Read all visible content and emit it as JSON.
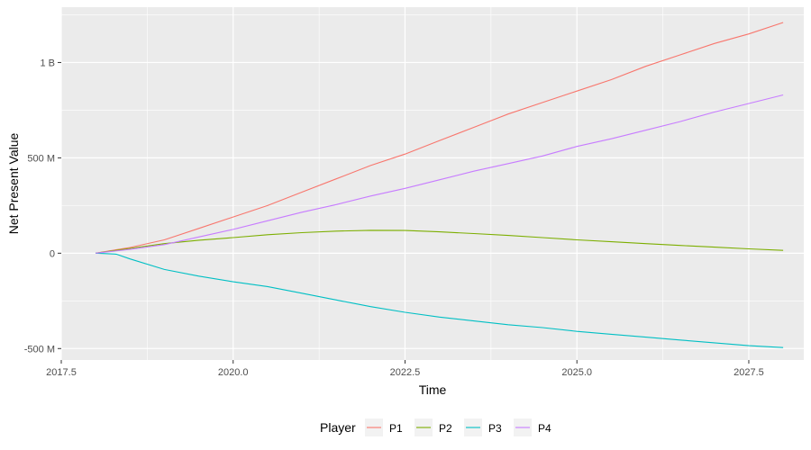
{
  "chart_data": {
    "type": "line",
    "xlabel": "Time",
    "ylabel": "Net Present Value",
    "xlim": [
      2017.5,
      2028.3
    ],
    "ylim": [
      -560000000,
      1290000000
    ],
    "x_ticks": [
      2017.5,
      2020.0,
      2022.5,
      2025.0,
      2027.5
    ],
    "x_tick_labels": [
      "2017.5",
      "2020.0",
      "2022.5",
      "2025.0",
      "2027.5"
    ],
    "y_ticks": [
      -500000000,
      0,
      500000000,
      1000000000
    ],
    "y_tick_labels": [
      "-500 M",
      "0",
      "500 M",
      "1 B"
    ],
    "grid": true,
    "panel_background": "#ebebeb",
    "legend": {
      "title": "Player",
      "position": "bottom"
    },
    "series": [
      {
        "name": "P1",
        "color": "#F8766D",
        "x": [
          2018.0,
          2018.5,
          2019.0,
          2019.5,
          2020.0,
          2020.5,
          2021.0,
          2021.5,
          2022.0,
          2022.5,
          2023.0,
          2023.5,
          2024.0,
          2024.5,
          2025.0,
          2025.5,
          2026.0,
          2026.5,
          2027.0,
          2027.5,
          2028.0
        ],
        "y": [
          0,
          30000000,
          70000000,
          130000000,
          190000000,
          250000000,
          320000000,
          390000000,
          460000000,
          520000000,
          590000000,
          660000000,
          730000000,
          790000000,
          850000000,
          910000000,
          980000000,
          1040000000,
          1100000000,
          1150000000,
          1210000000
        ]
      },
      {
        "name": "P2",
        "color": "#7CAE00",
        "x": [
          2018.0,
          2018.5,
          2019.0,
          2019.5,
          2020.0,
          2020.5,
          2021.0,
          2021.5,
          2022.0,
          2022.5,
          2023.0,
          2023.5,
          2024.0,
          2024.5,
          2025.0,
          2025.5,
          2026.0,
          2026.5,
          2027.0,
          2027.5,
          2028.0
        ],
        "y": [
          0,
          25000000,
          50000000,
          68000000,
          82000000,
          97000000,
          108000000,
          116000000,
          120000000,
          119000000,
          112000000,
          103000000,
          93000000,
          82000000,
          70000000,
          60000000,
          50000000,
          41000000,
          32000000,
          23000000,
          15000000
        ]
      },
      {
        "name": "P3",
        "color": "#00BFC4",
        "x": [
          2018.0,
          2018.3,
          2018.5,
          2019.0,
          2019.5,
          2020.0,
          2020.5,
          2021.0,
          2021.5,
          2022.0,
          2022.5,
          2023.0,
          2023.5,
          2024.0,
          2024.5,
          2025.0,
          2025.5,
          2026.0,
          2026.5,
          2027.0,
          2027.5,
          2028.0
        ],
        "y": [
          0,
          -5000000,
          -30000000,
          -85000000,
          -120000000,
          -150000000,
          -175000000,
          -210000000,
          -245000000,
          -280000000,
          -310000000,
          -335000000,
          -355000000,
          -375000000,
          -390000000,
          -410000000,
          -425000000,
          -440000000,
          -455000000,
          -470000000,
          -485000000,
          -495000000
        ]
      },
      {
        "name": "P4",
        "color": "#C77CFF",
        "x": [
          2018.0,
          2018.5,
          2019.0,
          2019.5,
          2020.0,
          2020.5,
          2021.0,
          2021.5,
          2022.0,
          2022.5,
          2023.0,
          2023.5,
          2024.0,
          2024.5,
          2025.0,
          2025.5,
          2026.0,
          2026.5,
          2027.0,
          2027.5,
          2028.0
        ],
        "y": [
          0,
          20000000,
          45000000,
          85000000,
          125000000,
          170000000,
          215000000,
          255000000,
          300000000,
          340000000,
          385000000,
          430000000,
          470000000,
          510000000,
          560000000,
          600000000,
          645000000,
          690000000,
          740000000,
          785000000,
          830000000
        ]
      }
    ]
  }
}
